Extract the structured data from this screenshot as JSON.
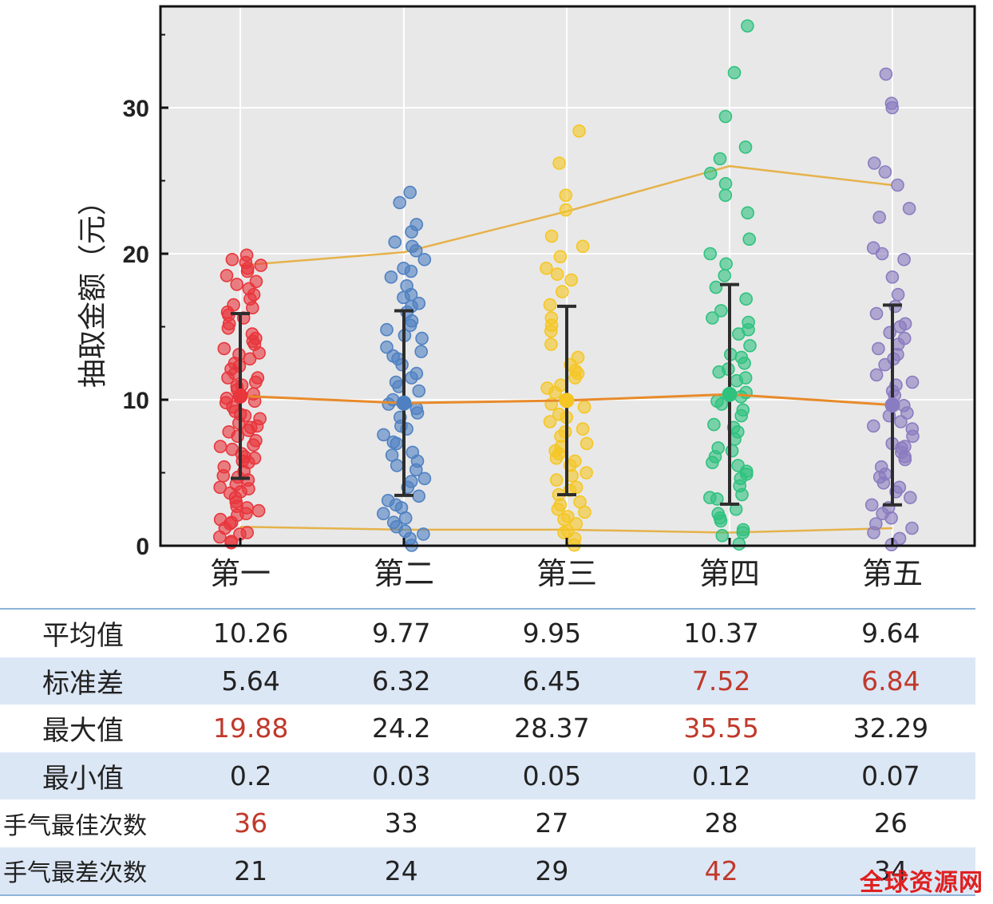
{
  "chart_data": {
    "type": "scatter",
    "ylabel": "抽取金额（元）",
    "ylim": [
      0,
      36
    ],
    "yticks": [
      0,
      10,
      20,
      30
    ],
    "categories": [
      "第一",
      "第二",
      "第三",
      "第四",
      "第五"
    ],
    "colors": [
      "#e8363c",
      "#4f81c2",
      "#f5c623",
      "#2ec27e",
      "#8a7cc0"
    ],
    "mean": [
      10.26,
      9.77,
      9.95,
      10.37,
      9.64
    ],
    "std": [
      5.64,
      6.32,
      6.45,
      7.52,
      6.84
    ],
    "max": [
      19.88,
      24.2,
      28.37,
      35.55,
      32.29
    ],
    "min": [
      0.2,
      0.03,
      0.05,
      0.12,
      0.07
    ],
    "upper_line": [
      19.2,
      20.1,
      22.9,
      26.0,
      24.7
    ],
    "lower_line": [
      1.3,
      1.1,
      1.1,
      0.9,
      1.2
    ],
    "upper_line_color": "#e6b24a",
    "mean_line_color": "#e88a2a",
    "error_bar_color": "#2d2d2d",
    "grid": true,
    "points": [
      [
        19.9,
        19.6,
        19.4,
        19.2,
        19.0,
        18.8,
        18.5,
        18.1,
        17.6,
        17.2,
        16.9,
        16.5,
        16.3,
        16.0,
        15.6,
        15.2,
        14.9,
        14.5,
        14.2,
        13.8,
        13.5,
        13.1,
        12.8,
        12.5,
        12.1,
        11.8,
        11.5,
        11.2,
        10.9,
        10.7,
        10.4,
        10.1,
        9.8,
        9.5,
        9.2,
        9.0,
        8.7,
        8.4,
        8.1,
        7.8,
        7.5,
        7.2,
        6.9,
        6.6,
        6.3,
        6.0,
        5.7,
        5.4,
        5.1,
        4.8,
        4.5,
        4.2,
        3.9,
        3.6,
        3.3,
        3.0,
        2.7,
        2.4,
        2.1,
        1.8,
        1.5,
        1.2,
        0.9,
        0.6,
        0.3,
        0.2,
        17.9,
        15.8,
        14.0,
        12.3,
        11.0,
        9.9,
        8.9,
        7.9,
        6.8,
        5.8,
        4.7,
        3.7,
        2.6,
        1.6,
        0.8,
        13.2,
        11.5,
        10.3,
        8.2,
        6.1,
        4.0,
        2.2
      ],
      [
        24.2,
        23.5,
        22.0,
        21.5,
        20.8,
        20.2,
        19.6,
        19.0,
        18.4,
        17.8,
        17.2,
        16.6,
        16.0,
        15.4,
        14.8,
        14.2,
        13.6,
        13.0,
        12.4,
        11.8,
        11.2,
        10.6,
        10.0,
        9.4,
        8.8,
        8.2,
        7.6,
        7.0,
        6.4,
        5.8,
        5.2,
        4.6,
        4.0,
        3.4,
        2.8,
        2.2,
        1.6,
        1.0,
        0.5,
        0.03,
        18.8,
        17.0,
        15.1,
        13.3,
        11.5,
        9.7,
        8.0,
        6.2,
        4.4,
        2.6,
        1.3,
        16.4,
        12.8,
        10.9,
        7.1,
        5.5,
        3.1,
        1.9,
        0.8,
        20.5,
        14.4,
        9.1
      ],
      [
        28.4,
        26.2,
        24.0,
        23.0,
        21.2,
        20.5,
        19.8,
        19.0,
        18.2,
        17.4,
        16.5,
        15.6,
        14.7,
        13.8,
        12.9,
        12.0,
        11.5,
        11.0,
        10.5,
        10.0,
        9.5,
        9.0,
        8.5,
        8.0,
        7.5,
        7.0,
        6.5,
        6.0,
        5.5,
        5.0,
        4.5,
        4.0,
        3.5,
        3.0,
        2.5,
        2.0,
        1.5,
        1.0,
        0.5,
        0.05,
        18.6,
        15.1,
        11.8,
        10.8,
        9.7,
        8.8,
        7.8,
        6.8,
        5.8,
        4.8,
        3.8,
        2.8,
        1.8,
        0.9,
        12.4,
        6.3,
        2.3
      ],
      [
        35.6,
        32.4,
        29.4,
        27.3,
        26.5,
        25.5,
        24.8,
        24.0,
        22.8,
        21.0,
        20.0,
        19.3,
        18.5,
        17.7,
        16.9,
        16.1,
        15.3,
        14.5,
        13.7,
        12.9,
        12.1,
        11.3,
        10.5,
        9.7,
        8.9,
        8.1,
        7.3,
        6.5,
        5.7,
        4.9,
        4.1,
        3.3,
        2.5,
        1.7,
        0.9,
        0.12,
        14.8,
        13.1,
        11.5,
        9.9,
        8.3,
        6.7,
        5.1,
        3.5,
        1.9,
        0.7,
        12.5,
        10.2,
        7.8,
        5.5,
        3.2,
        1.1,
        9.3,
        4.6,
        2.2,
        6.1,
        15.6,
        11.9
      ],
      [
        32.3,
        30.3,
        30.0,
        26.2,
        25.6,
        24.7,
        23.1,
        22.5,
        20.4,
        20.0,
        19.6,
        18.4,
        17.2,
        16.4,
        15.9,
        15.2,
        14.6,
        13.8,
        13.1,
        12.4,
        11.7,
        11.0,
        10.3,
        9.6,
        8.9,
        8.2,
        7.5,
        6.8,
        6.1,
        5.4,
        4.7,
        4.0,
        3.3,
        2.6,
        1.9,
        1.2,
        0.5,
        0.07,
        15.0,
        12.8,
        10.6,
        8.5,
        6.4,
        4.3,
        2.2,
        0.9,
        13.5,
        9.1,
        7.0,
        4.9,
        2.8,
        1.5,
        11.2,
        5.9,
        3.7,
        8.0,
        14.2,
        6.7
      ]
    ]
  },
  "table": {
    "rows": [
      {
        "label": "平均值",
        "values": [
          "10.26",
          "9.77",
          "9.95",
          "10.37",
          "9.64"
        ],
        "red": [
          false,
          false,
          false,
          false,
          false
        ]
      },
      {
        "label": "标准差",
        "values": [
          "5.64",
          "6.32",
          "6.45",
          "7.52",
          "6.84"
        ],
        "red": [
          false,
          false,
          false,
          true,
          true
        ]
      },
      {
        "label": "最大值",
        "values": [
          "19.88",
          "24.2",
          "28.37",
          "35.55",
          "32.29"
        ],
        "red": [
          true,
          false,
          false,
          true,
          false
        ]
      },
      {
        "label": "最小值",
        "values": [
          "0.2",
          "0.03",
          "0.05",
          "0.12",
          "0.07"
        ],
        "red": [
          false,
          false,
          false,
          false,
          false
        ]
      },
      {
        "label": "手气最佳次数",
        "values": [
          "36",
          "33",
          "27",
          "28",
          "26"
        ],
        "red": [
          true,
          false,
          false,
          false,
          false
        ]
      },
      {
        "label": "手气最差次数",
        "values": [
          "21",
          "24",
          "29",
          "42",
          "34"
        ],
        "red": [
          false,
          false,
          false,
          true,
          false
        ]
      }
    ]
  },
  "watermark": "全球资源网"
}
